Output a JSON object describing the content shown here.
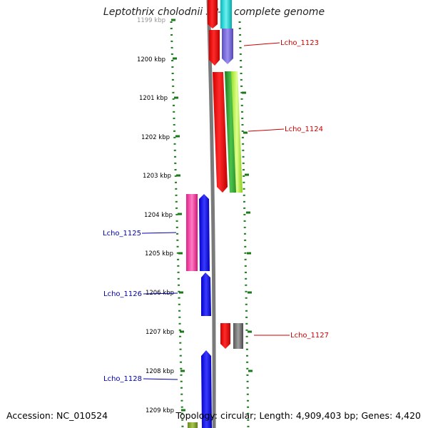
{
  "title": "Leptothrix cholodnii SP-6, complete genome",
  "scale_labels": [
    "1199 kbp",
    "1200 kbp",
    "1201 kbp",
    "1202 kbp",
    "1203 kbp",
    "1204 kbp",
    "1205 kbp",
    "1206 kbp",
    "1207 kbp",
    "1208 kbp",
    "1209 kbp"
  ],
  "gene_labels": {
    "right": [
      "Lcho_1123",
      "Lcho_1124",
      "Lcho_1127"
    ],
    "left": [
      "Lcho_1125",
      "Lcho_1126",
      "Lcho_1128"
    ]
  },
  "footer": {
    "accession_label": "Accession:",
    "accession": "NC_010524",
    "topology_label": "Topology:",
    "topology": "circular;",
    "length_label": "Length:",
    "length": "4,909,403 bp;",
    "genes_label": "Genes:",
    "genes": "4,420"
  },
  "colors": {
    "forward_label": "#cc0000",
    "reverse_label": "#0000aa",
    "tick": "#1a7a1a",
    "backbone": "#7a7a7a"
  }
}
